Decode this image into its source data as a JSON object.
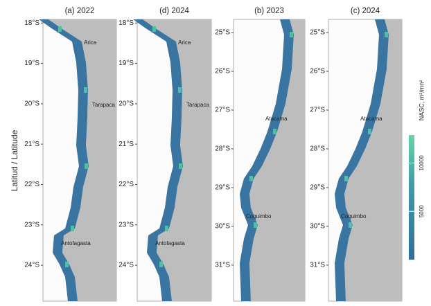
{
  "y_axis_label": "Latitud / Latitude",
  "panels": [
    {
      "title": "(a) 2022",
      "ylim": [
        17.91,
        24.89
      ],
      "yticks": [
        {
          "value": 18,
          "label": "18°S"
        },
        {
          "value": 19,
          "label": "19°S"
        },
        {
          "value": 20,
          "label": "20°S"
        },
        {
          "value": 21,
          "label": "21°S"
        },
        {
          "value": 22,
          "label": "22°S"
        },
        {
          "value": 23,
          "label": "23°S"
        },
        {
          "value": 24,
          "label": "24°S"
        }
      ],
      "places": [
        "Arica",
        "Tarapaca",
        "Antofagasta"
      ]
    },
    {
      "title": "(d) 2024",
      "ylim": [
        17.91,
        24.89
      ],
      "yticks": [
        {
          "value": 18,
          "label": "18°S"
        },
        {
          "value": 19,
          "label": "19°S"
        },
        {
          "value": 20,
          "label": "20°S"
        },
        {
          "value": 21,
          "label": "21°S"
        },
        {
          "value": 22,
          "label": "22°S"
        },
        {
          "value": 23,
          "label": "23°S"
        },
        {
          "value": 24,
          "label": "24°S"
        }
      ],
      "places": [
        "Arica",
        "Tarapaca",
        "Antofagasta"
      ]
    },
    {
      "title": "(b) 2023",
      "ylim": [
        24.66,
        31.93
      ],
      "yticks": [
        {
          "value": 25,
          "label": "25°S"
        },
        {
          "value": 26,
          "label": "26°S"
        },
        {
          "value": 27,
          "label": "27°S"
        },
        {
          "value": 28,
          "label": "28°S"
        },
        {
          "value": 29,
          "label": "29°S"
        },
        {
          "value": 30,
          "label": "30°S"
        },
        {
          "value": 31,
          "label": "31°S"
        }
      ],
      "places": [
        "Atacama",
        "Coquimbo"
      ]
    },
    {
      "title": "(c) 2024",
      "ylim": [
        24.66,
        31.93
      ],
      "yticks": [
        {
          "value": 25,
          "label": "25°S"
        },
        {
          "value": 26,
          "label": "26°S"
        },
        {
          "value": 27,
          "label": "27°S"
        },
        {
          "value": 28,
          "label": "28°S"
        },
        {
          "value": 29,
          "label": "29°S"
        },
        {
          "value": 30,
          "label": "30°S"
        },
        {
          "value": 31,
          "label": "31°S"
        }
      ],
      "places": [
        "Atacama",
        "Coquimbo"
      ]
    }
  ],
  "colorbar": {
    "label": "NASC, m²/mn²",
    "lim": [
      0,
      12900
    ],
    "ticks": [
      5000,
      10000
    ]
  }
}
